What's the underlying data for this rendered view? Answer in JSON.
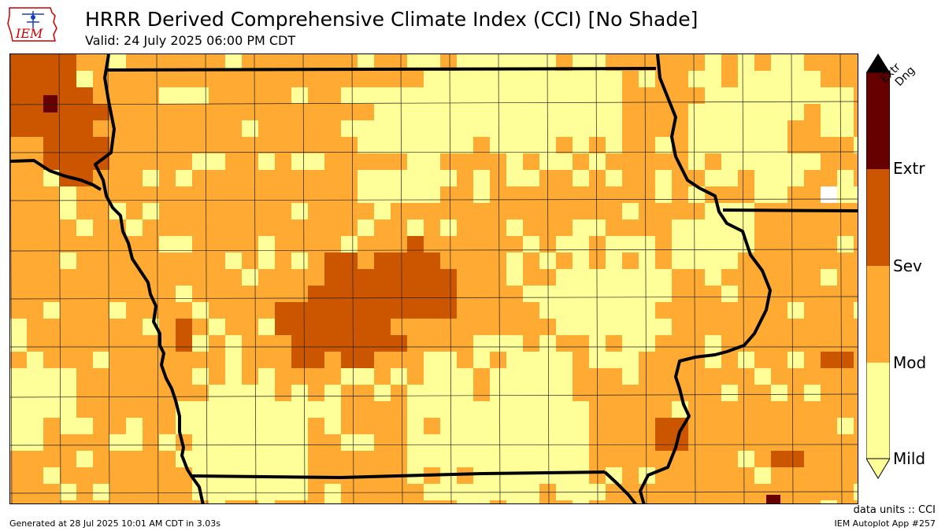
{
  "header": {
    "title": "HRRR Derived Comprehensive Climate Index (CCI) [No Shade]",
    "valid": "Valid: 24 July 2025 06:00 PM CDT"
  },
  "logo": {
    "text": "IEM"
  },
  "legend": {
    "categories": [
      {
        "label": "Mild",
        "color": "#ffff99"
      },
      {
        "label": "Mod",
        "color": "#ffaa33"
      },
      {
        "label": "Sev",
        "color": "#cc5500"
      },
      {
        "label": "Extr",
        "color": "#660000"
      }
    ],
    "top_label": "Extr Dng",
    "top_label_lines": [
      "Extr",
      "Dng"
    ]
  },
  "colors": {
    "mild": "#ffff99",
    "mod": "#ffaa33",
    "sev": "#cc5500",
    "extr": "#660000",
    "no_data": "#ffffff"
  },
  "footer": {
    "units": "data units :: CCI",
    "generated": "Generated at 28 Jul 2025 10:01 AM CDT in 3.03s",
    "app": "IEM Autoplot App #257"
  }
}
